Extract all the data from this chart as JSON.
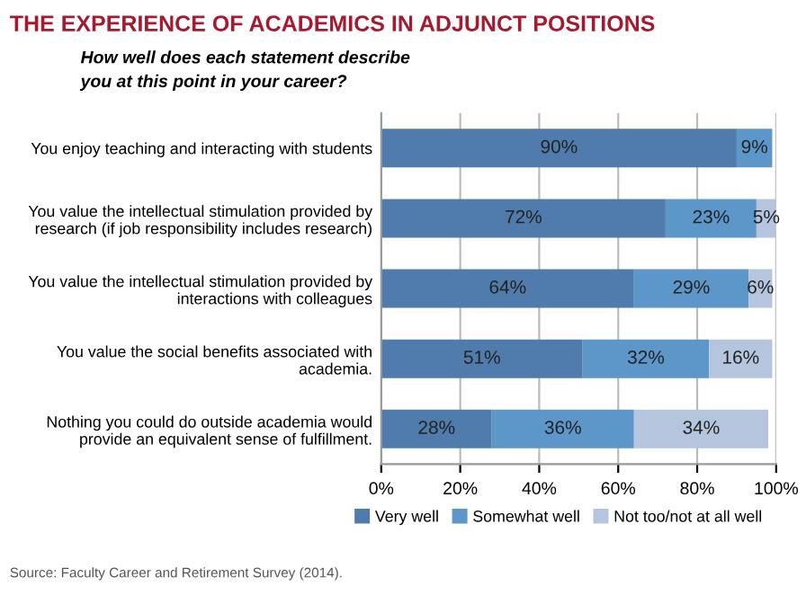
{
  "chart_data": {
    "type": "bar",
    "orientation": "horizontal",
    "stacked": true,
    "title": "THE EXPERIENCE OF ACADEMICS IN ADJUNCT POSITIONS",
    "subtitle": "How well does each statement describe\nyou at this point in your career?",
    "categories": [
      "You enjoy teaching and interacting with students",
      "You value the intellectual stimulation provided by\nresearch (if job responsibility includes research)",
      "You value the intellectual stimulation provided by\ninteractions with colleagues",
      "You value the social benefits associated with\nacademia.",
      "Nothing you could do outside academia would\nprovide an equivalent sense of fulfillment."
    ],
    "series": [
      {
        "name": "Very well",
        "color": "#4f7cac",
        "values": [
          90,
          72,
          64,
          51,
          28
        ]
      },
      {
        "name": "Somewhat well",
        "color": "#5d96c9",
        "values": [
          9,
          23,
          29,
          32,
          36
        ]
      },
      {
        "name": "Not too/not at all well",
        "color": "#b5c5de",
        "values": [
          null,
          5,
          6,
          16,
          34
        ]
      }
    ],
    "value_labels": [
      [
        "90%",
        "72%",
        "64%",
        "51%",
        "28%"
      ],
      [
        "9%",
        "23%",
        "29%",
        "32%",
        "36%"
      ],
      [
        null,
        "5%",
        "6%",
        "16%",
        "34%"
      ]
    ],
    "xlim": [
      0,
      100
    ],
    "xticks": [
      {
        "value": 0,
        "label": "0%"
      },
      {
        "value": 20,
        "label": "20%"
      },
      {
        "value": 40,
        "label": "40%"
      },
      {
        "value": 60,
        "label": "60%"
      },
      {
        "value": 80,
        "label": "80%"
      },
      {
        "value": 100,
        "label": "100%"
      }
    ],
    "grid": "x",
    "legend": "bottom",
    "annotations": [
      "Source: Faculty Career and Retirement Survey (2014)."
    ]
  }
}
